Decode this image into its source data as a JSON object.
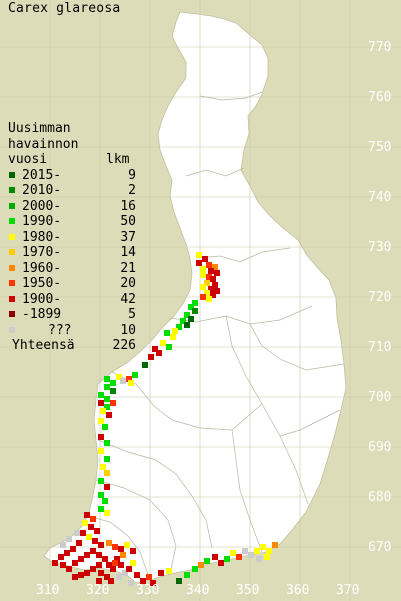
{
  "title": "Carex glareosa",
  "legend": {
    "heading": [
      "Uusimman",
      "havainnon",
      "vuosi"
    ],
    "count_heading": "lkm",
    "items": [
      {
        "label": "2015-",
        "count": "9",
        "color": "#006600"
      },
      {
        "label": "2010-",
        "count": "2",
        "color": "#008800"
      },
      {
        "label": "2000-",
        "count": "16",
        "color": "#00aa00"
      },
      {
        "label": "1990-",
        "count": "50",
        "color": "#00dd00"
      },
      {
        "label": "1980-",
        "count": "37",
        "color": "#ffff00"
      },
      {
        "label": "1970-",
        "count": "14",
        "color": "#ffcc00"
      },
      {
        "label": "1960-",
        "count": "21",
        "color": "#ff8800"
      },
      {
        "label": "1950-",
        "count": "20",
        "color": "#ff3300"
      },
      {
        "label": "1900-",
        "count": "42",
        "color": "#cc0000"
      },
      {
        "label": "-1899",
        "count": "5",
        "color": "#880000"
      },
      {
        "label": "???",
        "count": "10",
        "color": "#cccccc"
      }
    ],
    "total_label": "Yhteensä",
    "total_count": "226"
  },
  "grid": {
    "northing_labels": [
      "770",
      "760",
      "750",
      "740",
      "730",
      "720",
      "710",
      "700",
      "690",
      "680",
      "670"
    ],
    "easting_labels": [
      "310",
      "320",
      "330",
      "340",
      "350",
      "360",
      "370"
    ]
  },
  "colors": {
    "background": "#dcdcb9",
    "land": "#ffffff",
    "grid": "#c8c8a8",
    "border": "#b8b8a0",
    "label": "#ffffff"
  }
}
